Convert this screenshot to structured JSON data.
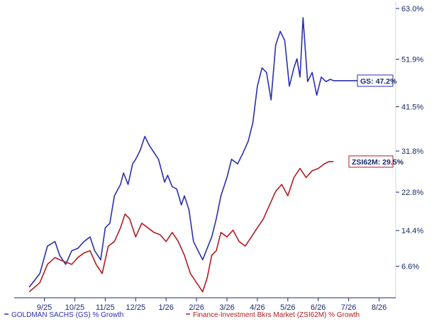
{
  "chart_data": {
    "type": "line",
    "title": "",
    "xlabel": "",
    "ylabel": "",
    "ylim": [
      0,
      63
    ],
    "x_tick_labels": [
      "9/25",
      "10/25",
      "11/25",
      "12/25",
      "1/26",
      "2/26",
      "3/26",
      "4/26",
      "5/26",
      "6/26",
      "7/26",
      "8/26"
    ],
    "y_tick_labels": [
      "6.6%",
      "14.4%",
      "22.8%",
      "31.8%",
      "41.5%",
      "51.9%",
      "63.0%"
    ],
    "y_tick_values": [
      6.6,
      14.4,
      22.8,
      31.8,
      41.5,
      51.9,
      63.0
    ],
    "grid": false,
    "legend_position": "bottom",
    "series": [
      {
        "name": "GOLDMAN SACHS (GS) % Growth",
        "end_label": "GS: 47.2%",
        "color": "#2a2fb0",
        "x": [
          0.0,
          0.35,
          0.6,
          0.85,
          1.0,
          1.2,
          1.4,
          1.6,
          1.8,
          2.0,
          2.15,
          2.35,
          2.5,
          2.65,
          2.8,
          3.0,
          3.1,
          3.25,
          3.4,
          3.5,
          3.65,
          3.8,
          3.95,
          4.1,
          4.25,
          4.45,
          4.55,
          4.7,
          4.85,
          5.0,
          5.1,
          5.25,
          5.4,
          5.55,
          5.7,
          5.85,
          6.0,
          6.15,
          6.3,
          6.5,
          6.65,
          6.85,
          7.0,
          7.2,
          7.35,
          7.5,
          7.65,
          7.8,
          7.95,
          8.1,
          8.25,
          8.4,
          8.55,
          8.7,
          8.8,
          8.9,
          9.0,
          9.15,
          9.3,
          9.45,
          9.6,
          9.75,
          9.9,
          10.0,
          10.1,
          10.2,
          10.3,
          10.45,
          10.6,
          10.75,
          10.9,
          11.0
        ],
        "y": [
          2.0,
          5.0,
          11.0,
          12.0,
          9.0,
          7.0,
          10.0,
          10.5,
          12.0,
          13.0,
          10.0,
          8.0,
          15.0,
          16.0,
          22.0,
          24.5,
          27.0,
          24.5,
          29.0,
          30.0,
          32.0,
          35.0,
          33.0,
          31.5,
          30.0,
          25.0,
          26.5,
          24.0,
          23.5,
          20.0,
          22.0,
          19.0,
          12.0,
          10.0,
          8.0,
          10.5,
          13.0,
          17.0,
          22.0,
          26.0,
          30.0,
          29.0,
          31.0,
          34.0,
          38.0,
          46.0,
          50.0,
          49.0,
          43.0,
          55.0,
          58.0,
          56.0,
          46.0,
          50.0,
          52.0,
          48.0,
          61.0,
          47.0,
          49.0,
          44.0,
          48.0,
          47.0,
          47.5,
          47.2,
          47.2,
          47.2,
          47.2,
          47.2,
          47.2,
          47.2,
          47.2,
          47.2
        ]
      },
      {
        "name": "Finance-Investment Bkrs Market (ZSI62M) % Growth",
        "end_label": "ZSI62M: 29.5%",
        "color": "#b01c22",
        "x": [
          0.0,
          0.35,
          0.6,
          0.85,
          1.0,
          1.2,
          1.4,
          1.6,
          1.8,
          2.0,
          2.2,
          2.4,
          2.6,
          2.8,
          3.0,
          3.15,
          3.3,
          3.5,
          3.7,
          3.9,
          4.1,
          4.3,
          4.5,
          4.7,
          4.9,
          5.1,
          5.3,
          5.5,
          5.7,
          5.85,
          6.0,
          6.15,
          6.3,
          6.5,
          6.7,
          6.9,
          7.1,
          7.3,
          7.5,
          7.7,
          7.9,
          8.1,
          8.3,
          8.5,
          8.7,
          8.9,
          9.1,
          9.3,
          9.5,
          9.7,
          9.85,
          10.0
        ],
        "y": [
          1.0,
          3.0,
          7.0,
          8.5,
          8.0,
          7.5,
          7.0,
          8.5,
          9.5,
          10.0,
          7.0,
          5.0,
          11.0,
          12.0,
          15.0,
          18.0,
          17.0,
          13.0,
          16.0,
          15.0,
          14.0,
          13.5,
          12.0,
          14.0,
          12.0,
          9.0,
          5.0,
          3.0,
          1.0,
          4.0,
          9.0,
          10.0,
          14.0,
          13.0,
          14.5,
          12.0,
          11.0,
          13.0,
          15.0,
          17.0,
          20.0,
          23.0,
          24.5,
          22.0,
          26.0,
          28.0,
          26.0,
          27.5,
          28.0,
          29.0,
          29.5,
          29.5
        ]
      }
    ]
  }
}
